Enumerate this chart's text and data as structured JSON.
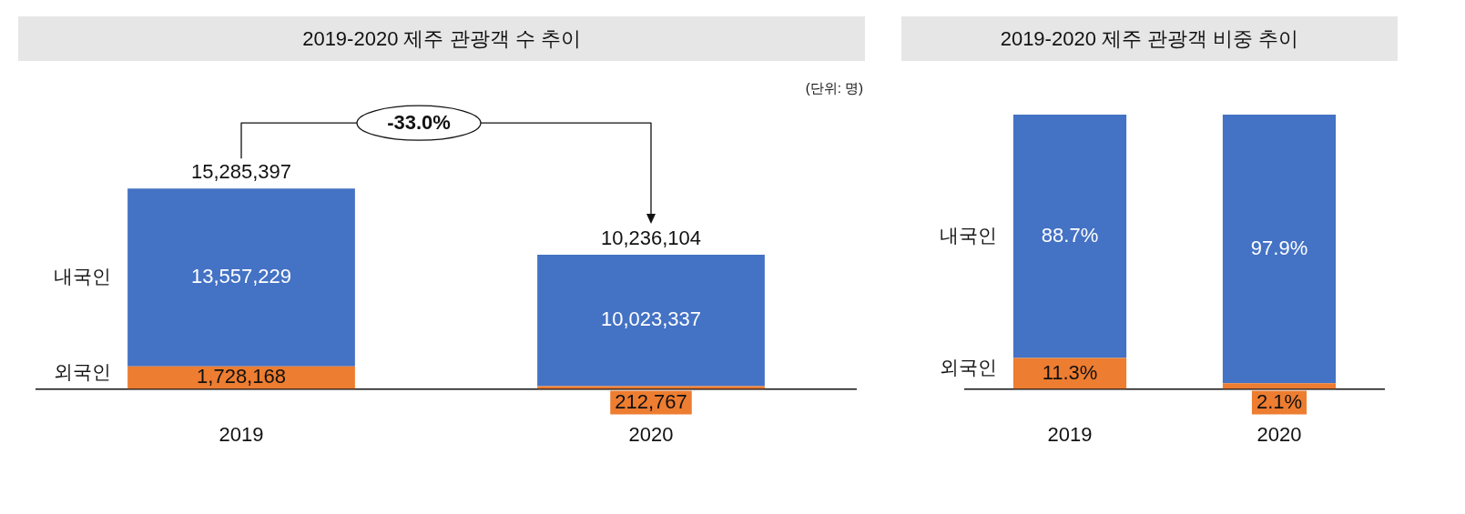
{
  "chart_data": [
    {
      "type": "bar",
      "title": "2019-2020 제주 관광객 수 추이",
      "categories": [
        "2019",
        "2020"
      ],
      "stacked": true,
      "legend": false,
      "grid": false,
      "series": [
        {
          "name": "외국인",
          "color": "#ed7d31",
          "values": [
            1728168,
            212767
          ],
          "value_labels": [
            "1,728,168",
            "212,767"
          ]
        },
        {
          "name": "내국인",
          "color": "#4472c4",
          "values": [
            13557229,
            10023337
          ],
          "value_labels": [
            "13,557,229",
            "10,023,337"
          ]
        }
      ],
      "totals": [
        "15,285,397",
        "10,236,104"
      ],
      "annotations": [
        "(단위: 명)",
        "-33.0%"
      ]
    },
    {
      "type": "bar",
      "title": "2019-2020 제주 관광객 비중 추이",
      "categories": [
        "2019",
        "2020"
      ],
      "stacked": true,
      "legend": false,
      "grid": false,
      "series": [
        {
          "name": "외국인",
          "color": "#ed7d31",
          "values": [
            11.3,
            2.1
          ],
          "value_labels": [
            "11.3%",
            "2.1%"
          ]
        },
        {
          "name": "내국인",
          "color": "#4472c4",
          "values": [
            88.7,
            97.9
          ],
          "value_labels": [
            "88.7%",
            "97.9%"
          ]
        }
      ]
    }
  ]
}
